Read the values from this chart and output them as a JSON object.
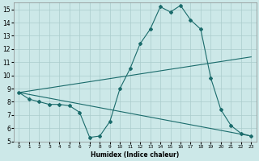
{
  "xlabel": "Humidex (Indice chaleur)",
  "bg_color": "#cce8e8",
  "grid_color": "#aacccc",
  "line_color": "#1a6b6b",
  "xlim": [
    -0.5,
    23.5
  ],
  "ylim": [
    5,
    15.5
  ],
  "xticks": [
    0,
    1,
    2,
    3,
    4,
    5,
    6,
    7,
    8,
    9,
    10,
    11,
    12,
    13,
    14,
    15,
    16,
    17,
    18,
    19,
    20,
    21,
    22,
    23
  ],
  "yticks": [
    5,
    6,
    7,
    8,
    9,
    10,
    11,
    12,
    13,
    14,
    15
  ],
  "line1": {
    "x": [
      0,
      1,
      2,
      3,
      4,
      5,
      6,
      7,
      8,
      9,
      10,
      11,
      12,
      13,
      14,
      15,
      16,
      17,
      18,
      19,
      20,
      21,
      22,
      23
    ],
    "y": [
      8.7,
      8.2,
      8.0,
      7.8,
      7.8,
      7.7,
      7.2,
      5.3,
      5.4,
      6.5,
      9.0,
      10.5,
      12.4,
      13.5,
      15.2,
      14.8,
      15.3,
      14.2,
      13.5,
      9.8,
      7.4,
      6.2,
      5.6,
      5.4
    ]
  },
  "line2": {
    "x": [
      0,
      23
    ],
    "y": [
      8.7,
      11.4
    ]
  },
  "line3": {
    "x": [
      0,
      23
    ],
    "y": [
      8.7,
      5.4
    ]
  }
}
